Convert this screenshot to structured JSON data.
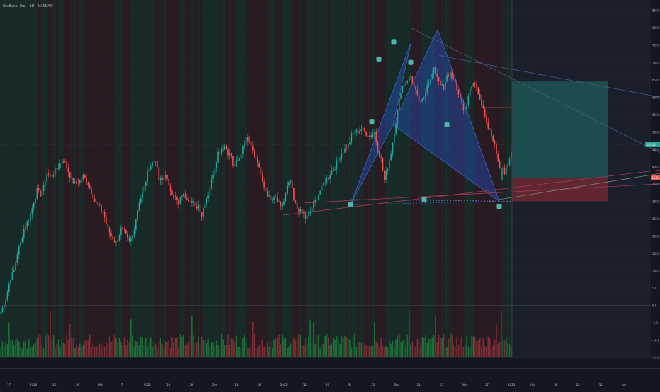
{
  "symbol": "NetEase, Inc. · 1D · NASDAQ",
  "colors": {
    "background": "#131722",
    "future_area": "#1b1f2b",
    "grid": "#242836",
    "bar_up": "#26a69a",
    "bar_down": "#ef5350",
    "stripe_green": "#1d3a2c",
    "stripe_red": "#3a1f22",
    "pattern_fill": "#2962ff",
    "pattern_stroke": "#3b63c9",
    "target_zone": "#1e6b62",
    "stop_zone": "#7a2a33",
    "marker": "#4db6ac",
    "text": "#b2b5be"
  },
  "price_axis": {
    "labels": [
      "85.0",
      "80.0",
      "75.0",
      "70.0",
      "65.0",
      "60.0",
      "55.0",
      "50.0",
      "45.0",
      "40.0",
      "35.0",
      "30.0",
      "25.0",
      "20.0",
      "15.0",
      "10.0",
      "5.0",
      "0.0",
      "-5.0",
      "-10.0",
      "-15.0"
    ],
    "current_price": "46.44",
    "stop_price": "36.84"
  },
  "time_axis": {
    "labels": [
      "17",
      "2020",
      "20",
      "29",
      "Mar",
      "7",
      "2021",
      "14",
      "28",
      "Dec",
      "13",
      "28",
      "2022",
      "12",
      "26",
      "8",
      "22",
      "Sep",
      "11",
      "25",
      "Nov",
      "17",
      "2023",
      "Apr",
      "18",
      "25",
      "11",
      "Jun"
    ]
  },
  "chart_data": {
    "type": "candlestick",
    "title": "NetEase, Inc. · 1D · NASDAQ",
    "y_range": [
      -15,
      88
    ],
    "anchors": [
      [
        0,
        -2
      ],
      [
        3,
        2
      ],
      [
        6,
        8
      ],
      [
        8,
        10
      ],
      [
        10,
        15
      ],
      [
        12,
        18
      ],
      [
        14,
        22
      ],
      [
        16,
        24
      ],
      [
        18,
        26
      ],
      [
        20,
        30
      ],
      [
        22,
        33
      ],
      [
        24,
        32
      ],
      [
        26,
        34
      ],
      [
        28,
        38
      ],
      [
        30,
        37
      ],
      [
        32,
        38
      ],
      [
        35,
        40
      ],
      [
        38,
        42
      ],
      [
        40,
        40
      ],
      [
        43,
        36
      ],
      [
        45,
        35
      ],
      [
        48,
        36
      ],
      [
        50,
        37
      ],
      [
        52,
        36
      ],
      [
        55,
        33
      ],
      [
        57,
        30
      ],
      [
        60,
        28
      ],
      [
        62,
        27
      ],
      [
        65,
        22
      ],
      [
        67,
        20
      ],
      [
        70,
        18
      ],
      [
        73,
        22
      ],
      [
        75,
        21
      ],
      [
        78,
        18
      ],
      [
        80,
        20
      ],
      [
        82,
        25
      ],
      [
        84,
        30
      ],
      [
        86,
        32
      ],
      [
        88,
        36
      ],
      [
        90,
        40
      ],
      [
        92,
        41
      ],
      [
        94,
        42
      ],
      [
        96,
        36
      ],
      [
        98,
        36
      ],
      [
        100,
        38
      ],
      [
        102,
        34
      ],
      [
        105,
        32
      ],
      [
        108,
        29
      ],
      [
        110,
        32
      ],
      [
        113,
        31
      ],
      [
        116,
        30
      ],
      [
        118,
        28
      ],
      [
        120,
        29
      ],
      [
        122,
        26
      ],
      [
        124,
        30
      ],
      [
        126,
        32
      ],
      [
        128,
        36
      ],
      [
        130,
        40
      ],
      [
        132,
        44
      ],
      [
        134,
        45
      ],
      [
        136,
        46
      ],
      [
        138,
        44
      ],
      [
        140,
        43
      ],
      [
        141,
        40
      ],
      [
        143,
        41
      ],
      [
        145,
        42
      ],
      [
        147,
        46
      ],
      [
        149,
        48
      ],
      [
        151,
        48
      ],
      [
        153,
        45
      ],
      [
        155,
        42
      ],
      [
        157,
        40
      ],
      [
        159,
        35
      ],
      [
        162,
        32
      ],
      [
        164,
        30
      ],
      [
        167,
        31
      ],
      [
        170,
        28
      ],
      [
        172,
        30
      ],
      [
        174,
        34
      ],
      [
        176,
        36
      ],
      [
        178,
        30
      ],
      [
        180,
        28
      ],
      [
        182,
        27
      ],
      [
        184,
        26
      ],
      [
        185,
        25
      ],
      [
        187,
        26
      ],
      [
        189,
        28
      ],
      [
        191,
        30
      ],
      [
        193,
        32
      ],
      [
        195,
        34
      ],
      [
        197,
        36
      ],
      [
        199,
        37
      ],
      [
        201,
        39
      ],
      [
        203,
        40
      ],
      [
        205,
        42
      ],
      [
        207,
        44
      ],
      [
        209,
        45
      ],
      [
        211,
        46
      ],
      [
        213,
        49
      ],
      [
        215,
        50
      ],
      [
        217,
        50
      ],
      [
        219,
        51
      ],
      [
        221,
        50
      ],
      [
        223,
        49
      ],
      [
        225,
        49
      ],
      [
        227,
        50
      ],
      [
        229,
        45
      ],
      [
        231,
        42
      ],
      [
        233,
        36
      ],
      [
        235,
        40
      ],
      [
        237,
        44
      ],
      [
        239,
        50
      ],
      [
        241,
        56
      ],
      [
        243,
        62
      ],
      [
        245,
        64
      ],
      [
        247,
        65
      ],
      [
        249,
        66
      ],
      [
        251,
        63
      ],
      [
        253,
        60
      ],
      [
        255,
        58
      ],
      [
        257,
        60
      ],
      [
        259,
        64
      ],
      [
        261,
        65
      ],
      [
        263,
        68
      ],
      [
        265,
        66
      ],
      [
        267,
        64
      ],
      [
        269,
        62
      ],
      [
        271,
        66
      ],
      [
        273,
        67
      ],
      [
        275,
        65
      ],
      [
        277,
        62
      ],
      [
        279,
        60
      ],
      [
        281,
        56
      ],
      [
        283,
        58
      ],
      [
        285,
        62
      ],
      [
        287,
        64
      ],
      [
        289,
        63
      ],
      [
        291,
        60
      ],
      [
        293,
        56
      ],
      [
        295,
        52
      ],
      [
        297,
        50
      ],
      [
        299,
        48
      ],
      [
        301,
        44
      ],
      [
        303,
        40
      ],
      [
        304,
        37
      ],
      [
        305,
        40
      ],
      [
        306,
        38
      ],
      [
        308,
        40
      ],
      [
        310,
        44
      ]
    ],
    "total_bars": 311,
    "volume_range": [
      0,
      100
    ],
    "xabcd_pattern": {
      "X": 29.0,
      "A": 75.5,
      "B": 52.0,
      "C": 79.5,
      "D": 30.0
    },
    "long_position": {
      "entry": 36.6,
      "target": 64.5,
      "stop": 30.0
    }
  }
}
